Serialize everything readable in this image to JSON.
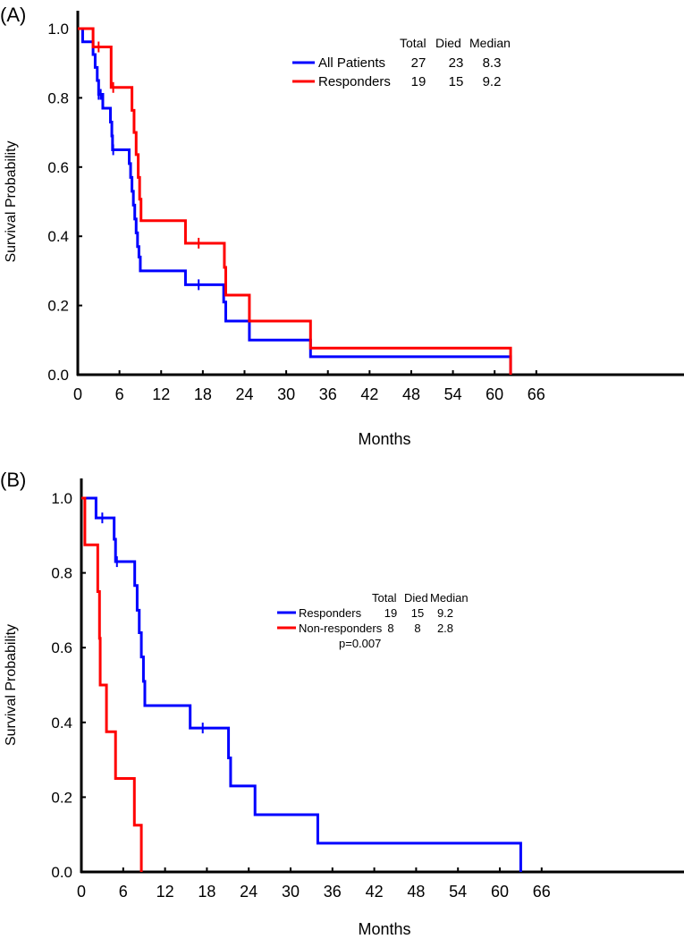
{
  "chart_data": [
    {
      "type": "line",
      "panel_label": "(A)",
      "xlabel": "Months",
      "ylabel": "Survival Probability",
      "xlim": [
        0,
        66
      ],
      "ylim": [
        0,
        1
      ],
      "xticks": [
        "0",
        "6",
        "12",
        "18",
        "24",
        "30",
        "36",
        "42",
        "48",
        "54",
        "60",
        "66"
      ],
      "yticks": [
        "0.0",
        "0.2",
        "0.4",
        "0.6",
        "0.8",
        "1.0"
      ],
      "legend": {
        "placement": "top-right",
        "header": [
          "Total",
          "Died",
          "Median"
        ],
        "entries": [
          {
            "name": "All Patients",
            "color": "#0000ff",
            "total": "27",
            "died": "23",
            "median": "8.3"
          },
          {
            "name": "Responders",
            "color": "#ff0000",
            "total": "19",
            "died": "15",
            "median": "9.2"
          }
        ]
      },
      "series": [
        {
          "name": "All Patients",
          "color": "#0000ff",
          "steps": [
            [
              0,
              1.0
            ],
            [
              0.7,
              0.962
            ],
            [
              2.2,
              0.925
            ],
            [
              2.5,
              0.888
            ],
            [
              2.8,
              0.85
            ],
            [
              3.0,
              0.81
            ],
            [
              3.6,
              0.77
            ],
            [
              4.7,
              0.73
            ],
            [
              4.9,
              0.69
            ],
            [
              5.0,
              0.65
            ],
            [
              7.4,
              0.61
            ],
            [
              7.6,
              0.57
            ],
            [
              7.8,
              0.53
            ],
            [
              8.0,
              0.49
            ],
            [
              8.2,
              0.45
            ],
            [
              8.4,
              0.41
            ],
            [
              8.6,
              0.37
            ],
            [
              8.8,
              0.34
            ],
            [
              9.0,
              0.3
            ],
            [
              15.5,
              0.26
            ],
            [
              21.0,
              0.21
            ],
            [
              21.3,
              0.155
            ],
            [
              24.7,
              0.1
            ],
            [
              33.5,
              0.052
            ],
            [
              62.3,
              0.0
            ]
          ],
          "censored": [
            [
              3.0,
              0.81
            ],
            [
              3.3,
              0.81
            ],
            [
              5.1,
              0.65
            ],
            [
              17.4,
              0.26
            ]
          ]
        },
        {
          "name": "Responders",
          "color": "#ff0000",
          "steps": [
            [
              0,
              1.0
            ],
            [
              2.2,
              0.947
            ],
            [
              4.8,
              0.83
            ],
            [
              7.8,
              0.764
            ],
            [
              8.1,
              0.7
            ],
            [
              8.4,
              0.636
            ],
            [
              8.7,
              0.57
            ],
            [
              8.9,
              0.507
            ],
            [
              9.1,
              0.445
            ],
            [
              15.5,
              0.38
            ],
            [
              21.1,
              0.31
            ],
            [
              21.3,
              0.23
            ],
            [
              24.7,
              0.155
            ],
            [
              33.5,
              0.077
            ],
            [
              62.3,
              0.0
            ]
          ],
          "censored": [
            [
              3.0,
              0.947
            ],
            [
              5.1,
              0.83
            ],
            [
              17.4,
              0.38
            ]
          ]
        }
      ]
    },
    {
      "type": "line",
      "panel_label": "(B)",
      "xlabel": "Months",
      "ylabel": "Survival Probability",
      "xlim": [
        0,
        66
      ],
      "ylim": [
        0,
        1
      ],
      "xticks": [
        "0",
        "6",
        "12",
        "18",
        "24",
        "30",
        "36",
        "42",
        "48",
        "54",
        "60",
        "66"
      ],
      "yticks": [
        "0.0",
        "0.2",
        "0.4",
        "0.6",
        "0.8",
        "1.0"
      ],
      "legend": {
        "placement": "center-right",
        "header": [
          "Total",
          "Died",
          "Median"
        ],
        "entries": [
          {
            "name": "Responders",
            "color": "#0000ff",
            "total": "19",
            "died": "15",
            "median": "9.2"
          },
          {
            "name": "Non-responders",
            "color": "#ff0000",
            "total": "8",
            "died": "8",
            "median": "2.8"
          }
        ],
        "annotation": "p=0.007"
      },
      "series": [
        {
          "name": "Responders",
          "color": "#0000ff",
          "steps": [
            [
              0,
              1.0
            ],
            [
              2.1,
              0.947
            ],
            [
              4.7,
              0.89
            ],
            [
              4.9,
              0.83
            ],
            [
              7.65,
              0.766
            ],
            [
              8.0,
              0.7
            ],
            [
              8.3,
              0.64
            ],
            [
              8.6,
              0.575
            ],
            [
              8.9,
              0.51
            ],
            [
              9.1,
              0.445
            ],
            [
              15.6,
              0.385
            ],
            [
              21.1,
              0.305
            ],
            [
              21.4,
              0.23
            ],
            [
              24.9,
              0.153
            ],
            [
              33.9,
              0.077
            ],
            [
              63.0,
              0.0
            ]
          ],
          "censored": [
            [
              3.0,
              0.947
            ],
            [
              5.1,
              0.83
            ],
            [
              17.4,
              0.385
            ]
          ]
        },
        {
          "name": "Non-responders",
          "color": "#ff0000",
          "steps": [
            [
              0,
              1.0
            ],
            [
              0.5,
              0.875
            ],
            [
              2.35,
              0.75
            ],
            [
              2.6,
              0.625
            ],
            [
              2.7,
              0.5
            ],
            [
              3.6,
              0.375
            ],
            [
              4.9,
              0.25
            ],
            [
              7.6,
              0.125
            ],
            [
              8.6,
              0.0
            ]
          ],
          "censored": []
        }
      ]
    }
  ]
}
